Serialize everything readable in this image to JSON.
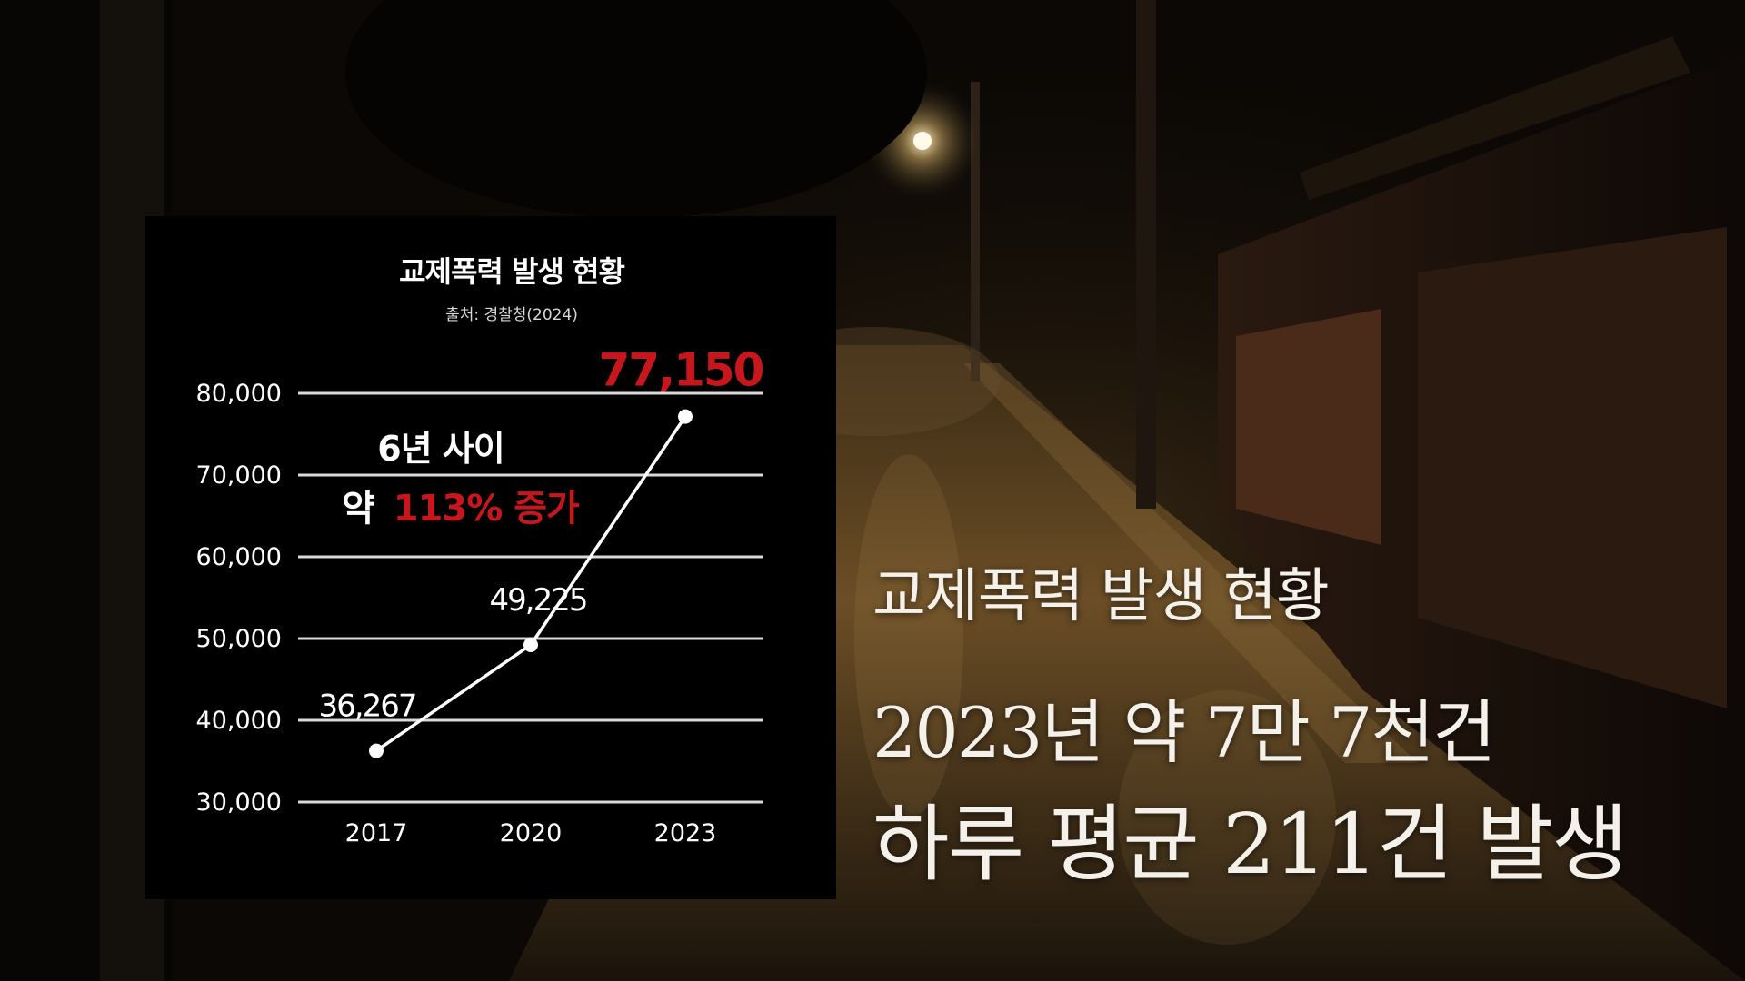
{
  "chart_data": {
    "type": "line",
    "title": "교제폭력 발생 현황",
    "subtitle": "출처: 경찰청(2024)",
    "categories": [
      "2017",
      "2020",
      "2023"
    ],
    "values": [
      36267,
      49225,
      77150
    ],
    "data_labels": [
      "36,267",
      "49,225",
      "77,150"
    ],
    "y_ticks": [
      "30,000",
      "40,000",
      "50,000",
      "60,000",
      "70,000",
      "80,000"
    ],
    "y_tick_values": [
      30000,
      40000,
      50000,
      60000,
      70000,
      80000
    ],
    "ylim": [
      30000,
      80000
    ],
    "grid": true,
    "annotation": {
      "line1": "6년 사이",
      "prefix": "약",
      "highlight": "113% 증가"
    },
    "colors": {
      "line": "#ffffff",
      "highlight": "#c8161d",
      "grid": "#d9d9d9",
      "panel": "#000000"
    }
  },
  "captions": {
    "title": "교제폭력 발생 현황",
    "line1": "2023년 약 7만 7천건",
    "line2": "하루 평균 211건 발생"
  },
  "background": {
    "scene": "night-alley-photo"
  }
}
